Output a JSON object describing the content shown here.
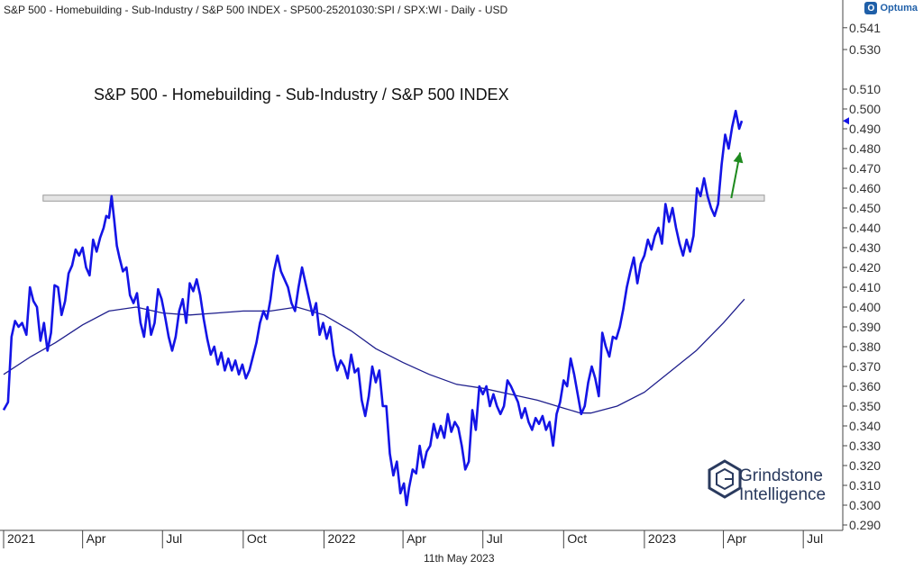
{
  "header": {
    "title": "S&P 500 - Homebuilding - Sub-Industry / S&P 500 INDEX - SP500-25201030:SPI / SPX:WI - Daily - USD",
    "brand": "Optuma",
    "brand_icon": "optuma-logo-icon"
  },
  "footer": {
    "date": "11th May 2023"
  },
  "logo": {
    "line1": "Grindstone",
    "line2": "Intelligence",
    "icon": "grindstone-hexagon-icon"
  },
  "chart_data": {
    "type": "line",
    "title": "S&P 500 - Homebuilding - Sub-Industry / S&P 500 INDEX",
    "x_tick_labels": [
      "2021",
      "Apr",
      "Jul",
      "Oct",
      "2022",
      "Apr",
      "Jul",
      "Oct",
      "2023",
      "Apr",
      "Jul"
    ],
    "y_tick_labels": [
      "0.541",
      "0.530",
      "0.510",
      "0.500",
      "0.490",
      "0.480",
      "0.470",
      "0.460",
      "0.450",
      "0.440",
      "0.430",
      "0.420",
      "0.410",
      "0.400",
      "0.390",
      "0.380",
      "0.370",
      "0.360",
      "0.350",
      "0.340",
      "0.330",
      "0.320",
      "0.310",
      "0.300",
      "0.290"
    ],
    "ylim": [
      0.29,
      0.545
    ],
    "xlim": [
      "2021-01-01",
      "2023-08-15"
    ],
    "grid": false,
    "colors": {
      "price": "#1414e6",
      "ma": "#1e1e8c",
      "arrow": "#1e8a1e",
      "resistance_fill": "#e4e4e4",
      "resistance_stroke": "#9a9a9a",
      "current_tag": "#1414e6"
    },
    "last_value": 0.494,
    "resistance_band": [
      0.4535,
      0.4565
    ],
    "resistance_start": "2021-02-15",
    "arrow": {
      "from": [
        "2023-04-10",
        0.455
      ],
      "to": [
        "2023-04-20",
        0.478
      ]
    },
    "series": [
      {
        "values": [
          [
            "2021-01-01",
            0.348
          ],
          [
            "2021-01-06",
            0.352
          ],
          [
            "2021-01-10",
            0.385
          ],
          [
            "2021-01-14",
            0.393
          ],
          [
            "2021-01-18",
            0.39
          ],
          [
            "2021-01-22",
            0.392
          ],
          [
            "2021-01-27",
            0.386
          ],
          [
            "2021-01-31",
            0.41
          ],
          [
            "2021-02-04",
            0.403
          ],
          [
            "2021-02-08",
            0.4
          ],
          [
            "2021-02-12",
            0.383
          ],
          [
            "2021-02-16",
            0.392
          ],
          [
            "2021-02-20",
            0.378
          ],
          [
            "2021-02-24",
            0.387
          ],
          [
            "2021-02-28",
            0.411
          ],
          [
            "2021-03-04",
            0.41
          ],
          [
            "2021-03-08",
            0.396
          ],
          [
            "2021-03-12",
            0.403
          ],
          [
            "2021-03-16",
            0.417
          ],
          [
            "2021-03-20",
            0.421
          ],
          [
            "2021-03-24",
            0.429
          ],
          [
            "2021-03-28",
            0.426
          ],
          [
            "2021-04-01",
            0.43
          ],
          [
            "2021-04-05",
            0.42
          ],
          [
            "2021-04-09",
            0.416
          ],
          [
            "2021-04-13",
            0.434
          ],
          [
            "2021-04-17",
            0.428
          ],
          [
            "2021-04-21",
            0.435
          ],
          [
            "2021-04-25",
            0.44
          ],
          [
            "2021-04-28",
            0.446
          ],
          [
            "2021-05-01",
            0.445
          ],
          [
            "2021-05-04",
            0.456
          ],
          [
            "2021-05-07",
            0.444
          ],
          [
            "2021-05-10",
            0.431
          ],
          [
            "2021-05-13",
            0.425
          ],
          [
            "2021-05-17",
            0.418
          ],
          [
            "2021-05-21",
            0.42
          ],
          [
            "2021-05-25",
            0.406
          ],
          [
            "2021-05-29",
            0.402
          ],
          [
            "2021-06-02",
            0.407
          ],
          [
            "2021-06-06",
            0.392
          ],
          [
            "2021-06-10",
            0.385
          ],
          [
            "2021-06-14",
            0.4
          ],
          [
            "2021-06-18",
            0.386
          ],
          [
            "2021-06-22",
            0.392
          ],
          [
            "2021-06-26",
            0.409
          ],
          [
            "2021-06-30",
            0.404
          ],
          [
            "2021-07-04",
            0.395
          ],
          [
            "2021-07-08",
            0.385
          ],
          [
            "2021-07-12",
            0.378
          ],
          [
            "2021-07-16",
            0.385
          ],
          [
            "2021-07-20",
            0.398
          ],
          [
            "2021-07-24",
            0.404
          ],
          [
            "2021-07-28",
            0.392
          ],
          [
            "2021-08-01",
            0.412
          ],
          [
            "2021-08-05",
            0.408
          ],
          [
            "2021-08-09",
            0.414
          ],
          [
            "2021-08-13",
            0.406
          ],
          [
            "2021-08-17",
            0.394
          ],
          [
            "2021-08-21",
            0.384
          ],
          [
            "2021-08-25",
            0.376
          ],
          [
            "2021-08-29",
            0.38
          ],
          [
            "2021-09-02",
            0.371
          ],
          [
            "2021-09-06",
            0.377
          ],
          [
            "2021-09-10",
            0.368
          ],
          [
            "2021-09-14",
            0.374
          ],
          [
            "2021-09-18",
            0.368
          ],
          [
            "2021-09-22",
            0.373
          ],
          [
            "2021-09-26",
            0.366
          ],
          [
            "2021-09-30",
            0.371
          ],
          [
            "2021-10-04",
            0.364
          ],
          [
            "2021-10-08",
            0.368
          ],
          [
            "2021-10-12",
            0.375
          ],
          [
            "2021-10-16",
            0.382
          ],
          [
            "2021-10-20",
            0.392
          ],
          [
            "2021-10-24",
            0.398
          ],
          [
            "2021-10-28",
            0.394
          ],
          [
            "2021-11-01",
            0.404
          ],
          [
            "2021-11-05",
            0.418
          ],
          [
            "2021-11-09",
            0.426
          ],
          [
            "2021-11-13",
            0.418
          ],
          [
            "2021-11-17",
            0.414
          ],
          [
            "2021-11-21",
            0.41
          ],
          [
            "2021-11-25",
            0.402
          ],
          [
            "2021-11-29",
            0.398
          ],
          [
            "2021-12-03",
            0.41
          ],
          [
            "2021-12-07",
            0.42
          ],
          [
            "2021-12-11",
            0.412
          ],
          [
            "2021-12-15",
            0.404
          ],
          [
            "2021-12-19",
            0.396
          ],
          [
            "2021-12-23",
            0.402
          ],
          [
            "2021-12-27",
            0.386
          ],
          [
            "2021-12-31",
            0.392
          ],
          [
            "2022-01-04",
            0.384
          ],
          [
            "2022-01-08",
            0.39
          ],
          [
            "2022-01-12",
            0.376
          ],
          [
            "2022-01-16",
            0.368
          ],
          [
            "2022-01-20",
            0.373
          ],
          [
            "2022-01-24",
            0.37
          ],
          [
            "2022-01-28",
            0.364
          ],
          [
            "2022-02-01",
            0.376
          ],
          [
            "2022-02-05",
            0.367
          ],
          [
            "2022-02-09",
            0.369
          ],
          [
            "2022-02-13",
            0.353
          ],
          [
            "2022-02-17",
            0.345
          ],
          [
            "2022-02-21",
            0.355
          ],
          [
            "2022-02-25",
            0.37
          ],
          [
            "2022-03-01",
            0.362
          ],
          [
            "2022-03-05",
            0.368
          ],
          [
            "2022-03-09",
            0.35
          ],
          [
            "2022-03-13",
            0.35
          ],
          [
            "2022-03-17",
            0.326
          ],
          [
            "2022-03-21",
            0.315
          ],
          [
            "2022-03-25",
            0.322
          ],
          [
            "2022-03-29",
            0.306
          ],
          [
            "2022-04-02",
            0.311
          ],
          [
            "2022-04-05",
            0.3
          ],
          [
            "2022-04-08",
            0.309
          ],
          [
            "2022-04-12",
            0.318
          ],
          [
            "2022-04-16",
            0.316
          ],
          [
            "2022-04-20",
            0.33
          ],
          [
            "2022-04-24",
            0.319
          ],
          [
            "2022-04-28",
            0.327
          ],
          [
            "2022-05-02",
            0.33
          ],
          [
            "2022-05-06",
            0.341
          ],
          [
            "2022-05-10",
            0.334
          ],
          [
            "2022-05-14",
            0.34
          ],
          [
            "2022-05-18",
            0.334
          ],
          [
            "2022-05-22",
            0.346
          ],
          [
            "2022-05-26",
            0.337
          ],
          [
            "2022-05-30",
            0.342
          ],
          [
            "2022-06-03",
            0.339
          ],
          [
            "2022-06-07",
            0.33
          ],
          [
            "2022-06-11",
            0.318
          ],
          [
            "2022-06-15",
            0.322
          ],
          [
            "2022-06-19",
            0.348
          ],
          [
            "2022-06-23",
            0.338
          ],
          [
            "2022-06-27",
            0.36
          ],
          [
            "2022-07-01",
            0.356
          ],
          [
            "2022-07-05",
            0.36
          ],
          [
            "2022-07-09",
            0.35
          ],
          [
            "2022-07-13",
            0.356
          ],
          [
            "2022-07-17",
            0.35
          ],
          [
            "2022-07-21",
            0.346
          ],
          [
            "2022-07-25",
            0.35
          ],
          [
            "2022-07-29",
            0.363
          ],
          [
            "2022-08-02",
            0.36
          ],
          [
            "2022-08-06",
            0.356
          ],
          [
            "2022-08-10",
            0.352
          ],
          [
            "2022-08-14",
            0.344
          ],
          [
            "2022-08-18",
            0.349
          ],
          [
            "2022-08-22",
            0.342
          ],
          [
            "2022-08-26",
            0.338
          ],
          [
            "2022-08-30",
            0.344
          ],
          [
            "2022-09-03",
            0.341
          ],
          [
            "2022-09-07",
            0.345
          ],
          [
            "2022-09-11",
            0.338
          ],
          [
            "2022-09-15",
            0.342
          ],
          [
            "2022-09-19",
            0.33
          ],
          [
            "2022-09-23",
            0.346
          ],
          [
            "2022-09-27",
            0.352
          ],
          [
            "2022-10-01",
            0.363
          ],
          [
            "2022-10-05",
            0.36
          ],
          [
            "2022-10-09",
            0.374
          ],
          [
            "2022-10-13",
            0.366
          ],
          [
            "2022-10-17",
            0.356
          ],
          [
            "2022-10-21",
            0.346
          ],
          [
            "2022-10-25",
            0.35
          ],
          [
            "2022-10-29",
            0.362
          ],
          [
            "2022-11-02",
            0.37
          ],
          [
            "2022-11-06",
            0.364
          ],
          [
            "2022-11-10",
            0.355
          ],
          [
            "2022-11-14",
            0.387
          ],
          [
            "2022-11-18",
            0.38
          ],
          [
            "2022-11-22",
            0.375
          ],
          [
            "2022-11-26",
            0.385
          ],
          [
            "2022-11-30",
            0.384
          ],
          [
            "2022-12-04",
            0.39
          ],
          [
            "2022-12-08",
            0.399
          ],
          [
            "2022-12-12",
            0.41
          ],
          [
            "2022-12-16",
            0.418
          ],
          [
            "2022-12-20",
            0.425
          ],
          [
            "2022-12-24",
            0.412
          ],
          [
            "2022-12-28",
            0.422
          ],
          [
            "2023-01-01",
            0.426
          ],
          [
            "2023-01-05",
            0.434
          ],
          [
            "2023-01-09",
            0.429
          ],
          [
            "2023-01-13",
            0.436
          ],
          [
            "2023-01-17",
            0.44
          ],
          [
            "2023-01-21",
            0.432
          ],
          [
            "2023-01-25",
            0.452
          ],
          [
            "2023-01-29",
            0.443
          ],
          [
            "2023-02-02",
            0.45
          ],
          [
            "2023-02-06",
            0.44
          ],
          [
            "2023-02-10",
            0.432
          ],
          [
            "2023-02-14",
            0.426
          ],
          [
            "2023-02-18",
            0.434
          ],
          [
            "2023-02-22",
            0.428
          ],
          [
            "2023-02-26",
            0.436
          ],
          [
            "2023-03-02",
            0.46
          ],
          [
            "2023-03-06",
            0.456
          ],
          [
            "2023-03-10",
            0.465
          ],
          [
            "2023-03-14",
            0.456
          ],
          [
            "2023-03-18",
            0.45
          ],
          [
            "2023-03-22",
            0.446
          ],
          [
            "2023-03-26",
            0.452
          ],
          [
            "2023-03-30",
            0.472
          ],
          [
            "2023-04-03",
            0.487
          ],
          [
            "2023-04-07",
            0.48
          ],
          [
            "2023-04-11",
            0.491
          ],
          [
            "2023-04-15",
            0.499
          ],
          [
            "2023-04-19",
            0.49
          ],
          [
            "2023-04-22",
            0.494
          ]
        ]
      },
      {
        "values": [
          [
            "2021-01-01",
            0.366
          ],
          [
            "2021-02-01",
            0.375
          ],
          [
            "2021-03-01",
            0.382
          ],
          [
            "2021-04-01",
            0.391
          ],
          [
            "2021-05-01",
            0.398
          ],
          [
            "2021-06-01",
            0.4
          ],
          [
            "2021-07-01",
            0.397
          ],
          [
            "2021-08-01",
            0.396
          ],
          [
            "2021-09-01",
            0.397
          ],
          [
            "2021-10-01",
            0.398
          ],
          [
            "2021-11-01",
            0.398
          ],
          [
            "2021-12-01",
            0.4
          ],
          [
            "2022-01-01",
            0.396
          ],
          [
            "2022-02-01",
            0.388
          ],
          [
            "2022-03-01",
            0.379
          ],
          [
            "2022-04-01",
            0.372
          ],
          [
            "2022-05-01",
            0.366
          ],
          [
            "2022-06-01",
            0.361
          ],
          [
            "2022-07-01",
            0.359
          ],
          [
            "2022-08-01",
            0.356
          ],
          [
            "2022-09-01",
            0.353
          ],
          [
            "2022-10-01",
            0.349
          ],
          [
            "2022-10-20",
            0.3465
          ],
          [
            "2022-11-01",
            0.3465
          ],
          [
            "2022-12-01",
            0.35
          ],
          [
            "2023-01-01",
            0.357
          ],
          [
            "2023-02-01",
            0.368
          ],
          [
            "2023-03-01",
            0.378
          ],
          [
            "2023-04-01",
            0.392
          ],
          [
            "2023-04-25",
            0.404
          ]
        ]
      }
    ]
  }
}
